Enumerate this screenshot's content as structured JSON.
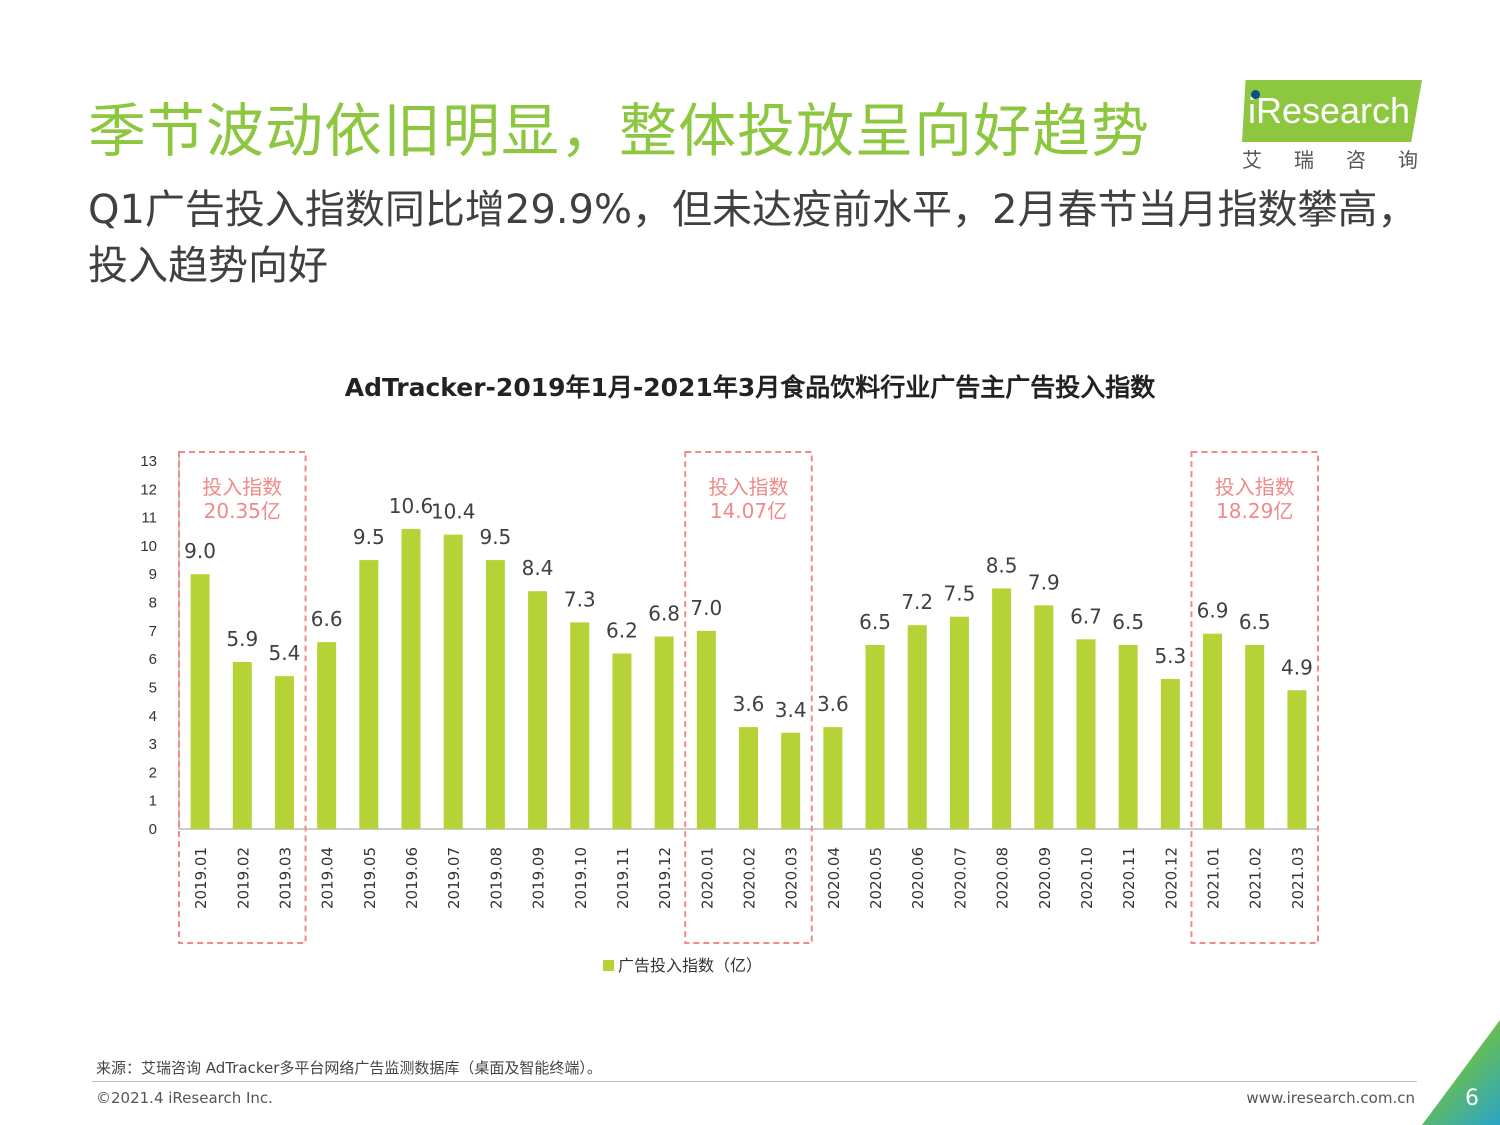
{
  "header": {
    "headline": "季节波动依旧明显，整体投放呈向好趋势",
    "subline": "Q1广告投入指数同比增29.9%，但未达疫前水平，2月春节当月指数攀高，投入趋势向好"
  },
  "logo": {
    "brand": "iResearch",
    "chinese": "艾瑞咨询"
  },
  "chart_data": {
    "type": "bar",
    "title": "AdTracker-2019年1月-2021年3月食品饮料行业广告主广告投入指数",
    "categories": [
      "2019.01",
      "2019.02",
      "2019.03",
      "2019.04",
      "2019.05",
      "2019.06",
      "2019.07",
      "2019.08",
      "2019.09",
      "2019.10",
      "2019.11",
      "2019.12",
      "2020.01",
      "2020.02",
      "2020.03",
      "2020.04",
      "2020.05",
      "2020.06",
      "2020.07",
      "2020.08",
      "2020.09",
      "2020.10",
      "2020.11",
      "2020.12",
      "2021.01",
      "2021.02",
      "2021.03"
    ],
    "series": [
      {
        "name": "广告投入指数（亿）",
        "values": [
          9.0,
          5.9,
          5.4,
          6.6,
          9.5,
          10.6,
          10.4,
          9.5,
          8.4,
          7.3,
          6.2,
          6.8,
          7.0,
          3.6,
          3.4,
          3.6,
          6.5,
          7.2,
          7.5,
          8.5,
          7.9,
          6.7,
          6.5,
          5.3,
          6.9,
          6.5,
          4.9
        ]
      }
    ],
    "ylim": [
      0,
      13
    ],
    "yticks": [
      0,
      1,
      2,
      3,
      4,
      5,
      6,
      7,
      8,
      9,
      10,
      11,
      12,
      13
    ],
    "bar_color": "#b5d336",
    "highlight_color": "#f08a8a",
    "highlights": [
      {
        "start": 0,
        "end": 2,
        "line1": "投入指数",
        "line2": "20.35亿"
      },
      {
        "start": 12,
        "end": 14,
        "line1": "投入指数",
        "line2": "14.07亿"
      },
      {
        "start": 24,
        "end": 26,
        "line1": "投入指数",
        "line2": "18.29亿"
      }
    ],
    "legend_position": "bottom"
  },
  "footer": {
    "source": "来源：艾瑞咨询 AdTracker多平台网络广告监测数据库（桌面及智能终端）。",
    "copyright": "©2021.4 iResearch Inc.",
    "website": "www.iresearch.com.cn",
    "page": "6"
  },
  "colors": {
    "accent": "#8dc63f",
    "text": "#404040"
  }
}
